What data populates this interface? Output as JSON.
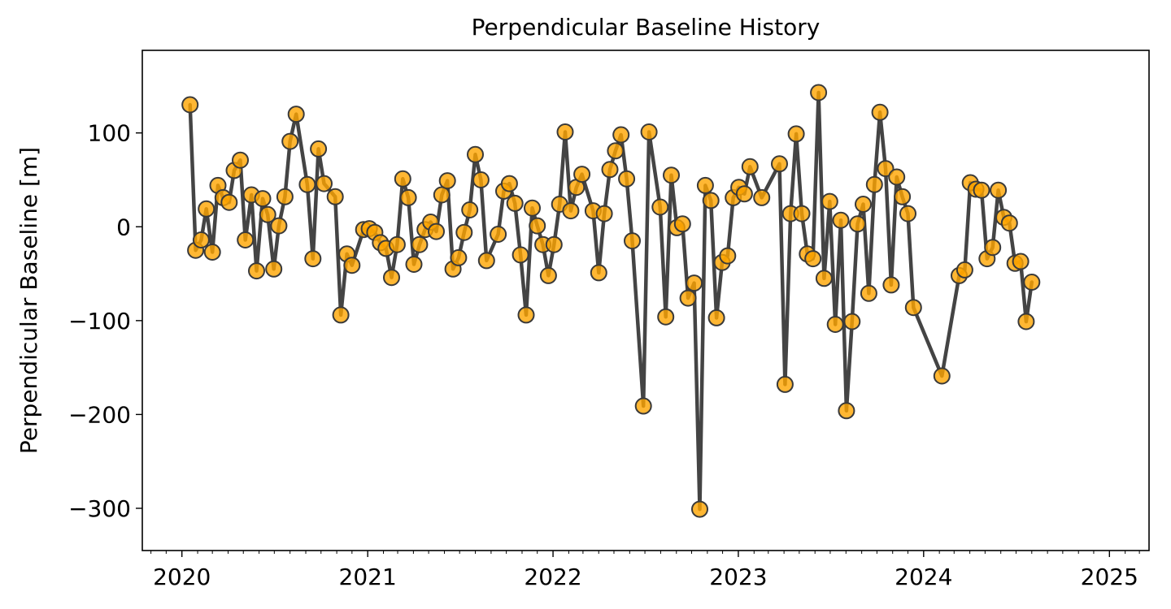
{
  "chart_data": {
    "type": "line",
    "title": "Perpendicular Baseline History",
    "xlabel": "",
    "ylabel": "Perpendicular Baseline [m]",
    "x_type": "date",
    "xlim": [
      "2019-10-15",
      "2025-03-20"
    ],
    "ylim": [
      -345,
      188
    ],
    "x_ticks": [
      {
        "label": "2020",
        "date": "2020-01-01"
      },
      {
        "label": "2021",
        "date": "2021-01-01"
      },
      {
        "label": "2022",
        "date": "2022-01-01"
      },
      {
        "label": "2023",
        "date": "2023-01-01"
      },
      {
        "label": "2024",
        "date": "2024-01-01"
      },
      {
        "label": "2025",
        "date": "2025-01-01"
      }
    ],
    "y_ticks": [
      {
        "label": "100",
        "value": 100
      },
      {
        "label": "0",
        "value": 0
      },
      {
        "label": "−100",
        "value": -100
      },
      {
        "label": "−200",
        "value": -200
      },
      {
        "label": "−300",
        "value": -300
      }
    ],
    "grid": false,
    "legend": "none",
    "colors": {
      "line": "#444444",
      "marker_fill": "#FFA500",
      "marker_edge": "#3a3a3a"
    },
    "series": [
      {
        "points": [
          {
            "x": "2020-01-17",
            "y": 130
          },
          {
            "x": "2020-01-28",
            "y": -25
          },
          {
            "x": "2020-02-08",
            "y": -14
          },
          {
            "x": "2020-02-18",
            "y": 19
          },
          {
            "x": "2020-03-01",
            "y": -27
          },
          {
            "x": "2020-03-12",
            "y": 44
          },
          {
            "x": "2020-03-22",
            "y": 31
          },
          {
            "x": "2020-04-03",
            "y": 26
          },
          {
            "x": "2020-04-13",
            "y": 60
          },
          {
            "x": "2020-04-25",
            "y": 71
          },
          {
            "x": "2020-05-05",
            "y": -14
          },
          {
            "x": "2020-05-17",
            "y": 34
          },
          {
            "x": "2020-05-27",
            "y": -47
          },
          {
            "x": "2020-06-08",
            "y": 30
          },
          {
            "x": "2020-06-18",
            "y": 13
          },
          {
            "x": "2020-06-30",
            "y": -45
          },
          {
            "x": "2020-07-10",
            "y": 1
          },
          {
            "x": "2020-07-22",
            "y": 32
          },
          {
            "x": "2020-08-01",
            "y": 91
          },
          {
            "x": "2020-08-13",
            "y": 120
          },
          {
            "x": "2020-09-04",
            "y": 45
          },
          {
            "x": "2020-09-15",
            "y": -34
          },
          {
            "x": "2020-09-26",
            "y": 83
          },
          {
            "x": "2020-10-07",
            "y": 46
          },
          {
            "x": "2020-10-29",
            "y": 32
          },
          {
            "x": "2020-11-09",
            "y": -94
          },
          {
            "x": "2020-11-21",
            "y": -29
          },
          {
            "x": "2020-12-01",
            "y": -41
          },
          {
            "x": "2020-12-24",
            "y": -3
          },
          {
            "x": "2021-01-04",
            "y": -2
          },
          {
            "x": "2021-01-15",
            "y": -6
          },
          {
            "x": "2021-01-26",
            "y": -17
          },
          {
            "x": "2021-02-06",
            "y": -23
          },
          {
            "x": "2021-02-17",
            "y": -54
          },
          {
            "x": "2021-02-28",
            "y": -19
          },
          {
            "x": "2021-03-11",
            "y": 51
          },
          {
            "x": "2021-03-22",
            "y": 31
          },
          {
            "x": "2021-04-02",
            "y": -40
          },
          {
            "x": "2021-04-13",
            "y": -19
          },
          {
            "x": "2021-04-24",
            "y": -3
          },
          {
            "x": "2021-05-05",
            "y": 5
          },
          {
            "x": "2021-05-16",
            "y": -5
          },
          {
            "x": "2021-05-27",
            "y": 34
          },
          {
            "x": "2021-06-07",
            "y": 49
          },
          {
            "x": "2021-06-18",
            "y": -45
          },
          {
            "x": "2021-06-29",
            "y": -33
          },
          {
            "x": "2021-07-10",
            "y": -6
          },
          {
            "x": "2021-07-21",
            "y": 18
          },
          {
            "x": "2021-08-01",
            "y": 77
          },
          {
            "x": "2021-08-12",
            "y": 50
          },
          {
            "x": "2021-08-23",
            "y": -36
          },
          {
            "x": "2021-09-15",
            "y": -8
          },
          {
            "x": "2021-09-26",
            "y": 38
          },
          {
            "x": "2021-10-07",
            "y": 46
          },
          {
            "x": "2021-10-18",
            "y": 25
          },
          {
            "x": "2021-10-29",
            "y": -30
          },
          {
            "x": "2021-11-09",
            "y": -94
          },
          {
            "x": "2021-11-21",
            "y": 20
          },
          {
            "x": "2021-12-01",
            "y": 1
          },
          {
            "x": "2021-12-12",
            "y": -19
          },
          {
            "x": "2021-12-23",
            "y": -52
          },
          {
            "x": "2022-01-03",
            "y": -19
          },
          {
            "x": "2022-01-14",
            "y": 24
          },
          {
            "x": "2022-01-25",
            "y": 101
          },
          {
            "x": "2022-02-05",
            "y": 17
          },
          {
            "x": "2022-02-16",
            "y": 42
          },
          {
            "x": "2022-02-27",
            "y": 56
          },
          {
            "x": "2022-03-21",
            "y": 17
          },
          {
            "x": "2022-04-01",
            "y": -49
          },
          {
            "x": "2022-04-12",
            "y": 14
          },
          {
            "x": "2022-04-23",
            "y": 61
          },
          {
            "x": "2022-05-04",
            "y": 81
          },
          {
            "x": "2022-05-15",
            "y": 98
          },
          {
            "x": "2022-05-26",
            "y": 51
          },
          {
            "x": "2022-06-06",
            "y": -15
          },
          {
            "x": "2022-06-28",
            "y": -191
          },
          {
            "x": "2022-07-09",
            "y": 101
          },
          {
            "x": "2022-07-31",
            "y": 21
          },
          {
            "x": "2022-08-11",
            "y": -96
          },
          {
            "x": "2022-08-22",
            "y": 55
          },
          {
            "x": "2022-09-02",
            "y": -1
          },
          {
            "x": "2022-09-13",
            "y": 3
          },
          {
            "x": "2022-09-24",
            "y": -76
          },
          {
            "x": "2022-10-06",
            "y": -60
          },
          {
            "x": "2022-10-17",
            "y": -301
          },
          {
            "x": "2022-10-28",
            "y": 44
          },
          {
            "x": "2022-11-08",
            "y": 28
          },
          {
            "x": "2022-11-19",
            "y": -97
          },
          {
            "x": "2022-11-30",
            "y": -38
          },
          {
            "x": "2022-12-11",
            "y": -31
          },
          {
            "x": "2022-12-22",
            "y": 31
          },
          {
            "x": "2023-01-02",
            "y": 42
          },
          {
            "x": "2023-01-13",
            "y": 35
          },
          {
            "x": "2023-01-24",
            "y": 64
          },
          {
            "x": "2023-02-16",
            "y": 31
          },
          {
            "x": "2023-03-23",
            "y": 67
          },
          {
            "x": "2023-04-03",
            "y": -168
          },
          {
            "x": "2023-04-14",
            "y": 14
          },
          {
            "x": "2023-04-25",
            "y": 99
          },
          {
            "x": "2023-05-06",
            "y": 14
          },
          {
            "x": "2023-05-17",
            "y": -29
          },
          {
            "x": "2023-05-28",
            "y": -34
          },
          {
            "x": "2023-06-08",
            "y": 143
          },
          {
            "x": "2023-06-19",
            "y": -55
          },
          {
            "x": "2023-06-30",
            "y": 27
          },
          {
            "x": "2023-07-11",
            "y": -104
          },
          {
            "x": "2023-07-22",
            "y": 7
          },
          {
            "x": "2023-08-02",
            "y": -196
          },
          {
            "x": "2023-08-13",
            "y": -101
          },
          {
            "x": "2023-08-24",
            "y": 3
          },
          {
            "x": "2023-09-04",
            "y": 24
          },
          {
            "x": "2023-09-15",
            "y": -71
          },
          {
            "x": "2023-09-26",
            "y": 45
          },
          {
            "x": "2023-10-07",
            "y": 122
          },
          {
            "x": "2023-10-18",
            "y": 62
          },
          {
            "x": "2023-10-29",
            "y": -62
          },
          {
            "x": "2023-11-09",
            "y": 53
          },
          {
            "x": "2023-11-20",
            "y": 32
          },
          {
            "x": "2023-12-01",
            "y": 14
          },
          {
            "x": "2023-12-12",
            "y": -86
          },
          {
            "x": "2024-02-06",
            "y": -159
          },
          {
            "x": "2024-03-11",
            "y": -52
          },
          {
            "x": "2024-03-22",
            "y": -46
          },
          {
            "x": "2024-04-02",
            "y": 47
          },
          {
            "x": "2024-04-13",
            "y": 40
          },
          {
            "x": "2024-04-24",
            "y": 39
          },
          {
            "x": "2024-05-05",
            "y": -34
          },
          {
            "x": "2024-05-16",
            "y": -22
          },
          {
            "x": "2024-05-27",
            "y": 39
          },
          {
            "x": "2024-06-07",
            "y": 10
          },
          {
            "x": "2024-06-18",
            "y": 4
          },
          {
            "x": "2024-06-29",
            "y": -39
          },
          {
            "x": "2024-07-10",
            "y": -37
          },
          {
            "x": "2024-07-21",
            "y": -101
          },
          {
            "x": "2024-08-01",
            "y": -59
          }
        ]
      }
    ]
  }
}
